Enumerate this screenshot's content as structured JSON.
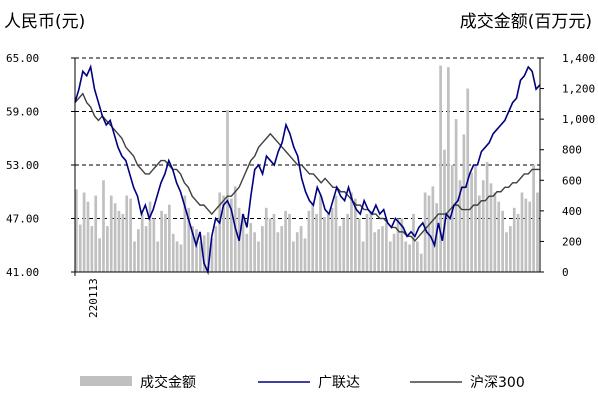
{
  "chart_data": {
    "type": "line",
    "ylabel_left": "人民币(元)",
    "ylabel_right": "成交金额(百万元)",
    "x_tick_label": "220113",
    "y_left": {
      "min": 41,
      "max": 65,
      "ticks": [
        "65.00",
        "59.00",
        "53.00",
        "47.00",
        "41.00"
      ]
    },
    "y_right": {
      "min": 0,
      "max": 1400,
      "ticks": [
        "1,400",
        "1,200",
        "1,000",
        "800",
        "600",
        "400",
        "200",
        "0"
      ]
    },
    "grid": "dashed horizontal at left-axis ticks",
    "legend_position": "bottom",
    "series": [
      {
        "name": "成交金额",
        "kind": "bar",
        "axis": "right",
        "color": "#c0c0c0",
        "values": [
          540,
          310,
          520,
          460,
          300,
          500,
          220,
          600,
          300,
          500,
          450,
          400,
          380,
          500,
          480,
          200,
          280,
          380,
          300,
          460,
          350,
          200,
          400,
          380,
          440,
          250,
          200,
          180,
          500,
          420,
          300,
          280,
          200,
          240,
          260,
          220,
          300,
          520,
          500,
          1060,
          480,
          560,
          420,
          380,
          250,
          320,
          260,
          200,
          300,
          420,
          350,
          380,
          260,
          300,
          400,
          380,
          200,
          260,
          300,
          220,
          400,
          450,
          380,
          500,
          360,
          380,
          420,
          500,
          300,
          350,
          380,
          520,
          480,
          350,
          200,
          380,
          400,
          260,
          280,
          300,
          320,
          200,
          250,
          350,
          350,
          200,
          180,
          380,
          200,
          120,
          520,
          500,
          560,
          450,
          1350,
          800,
          1340,
          700,
          1000,
          600,
          900,
          1200,
          650,
          700,
          500,
          600,
          720,
          580,
          520,
          460,
          400,
          260,
          300,
          420,
          380,
          520,
          480,
          460,
          700,
          520
        ]
      },
      {
        "name": "广联达",
        "kind": "line",
        "axis": "left",
        "color": "#000080",
        "values": [
          60.0,
          61.5,
          63.5,
          63.0,
          64.0,
          61.5,
          60.0,
          58.5,
          57.5,
          58.0,
          56.5,
          55.0,
          54.0,
          53.5,
          52.0,
          50.5,
          49.5,
          47.5,
          48.5,
          47.0,
          48.0,
          49.5,
          51.0,
          52.0,
          53.5,
          52.5,
          51.0,
          50.0,
          48.5,
          47.0,
          45.5,
          44.0,
          45.5,
          42.0,
          41.0,
          45.0,
          47.0,
          46.5,
          48.5,
          49.0,
          48.0,
          46.0,
          44.5,
          47.5,
          46.0,
          49.5,
          52.5,
          53.0,
          52.0,
          54.0,
          53.5,
          53.0,
          54.5,
          55.5,
          57.5,
          56.5,
          55.0,
          54.0,
          51.5,
          50.0,
          49.0,
          48.5,
          50.5,
          49.5,
          48.0,
          47.5,
          49.0,
          50.5,
          49.5,
          49.0,
          50.5,
          49.0,
          48.0,
          47.5,
          49.0,
          48.0,
          47.5,
          48.5,
          47.5,
          48.0,
          46.5,
          46.0,
          47.0,
          46.5,
          46.0,
          45.0,
          45.5,
          45.0,
          46.0,
          46.5,
          45.5,
          45.0,
          44.0,
          46.5,
          44.5,
          47.5,
          47.0,
          48.5,
          49.0,
          50.5,
          50.5,
          52.0,
          53.0,
          53.0,
          54.5,
          55.0,
          55.5,
          56.5,
          57.0,
          57.5,
          58.0,
          59.0,
          60.0,
          60.5,
          62.5,
          63.0,
          64.0,
          63.5,
          61.5,
          62.0
        ]
      },
      {
        "name": "沪深300",
        "kind": "line",
        "axis": "left",
        "color": "#404040",
        "values": [
          60.0,
          60.5,
          61.0,
          60.0,
          59.5,
          58.5,
          58.0,
          58.5,
          58.0,
          57.5,
          57.0,
          56.5,
          56.0,
          55.0,
          54.5,
          54.0,
          53.0,
          52.5,
          52.0,
          52.0,
          52.5,
          53.0,
          53.5,
          53.5,
          53.0,
          52.5,
          52.5,
          52.0,
          51.0,
          50.5,
          49.5,
          49.0,
          48.5,
          48.5,
          48.0,
          47.5,
          48.0,
          48.5,
          49.0,
          49.5,
          49.5,
          50.0,
          50.5,
          51.5,
          52.5,
          53.5,
          54.0,
          55.0,
          55.5,
          56.0,
          56.5,
          56.0,
          55.5,
          55.0,
          54.5,
          54.0,
          53.5,
          53.0,
          53.0,
          52.5,
          52.0,
          52.0,
          51.5,
          51.0,
          51.5,
          51.0,
          50.5,
          50.5,
          50.0,
          50.0,
          49.5,
          49.0,
          48.5,
          48.5,
          48.0,
          48.0,
          47.5,
          47.5,
          47.0,
          47.0,
          46.5,
          46.0,
          46.0,
          45.5,
          45.5,
          45.0,
          45.0,
          44.5,
          45.0,
          45.5,
          46.0,
          46.5,
          47.0,
          47.5,
          47.5,
          47.5,
          48.0,
          48.5,
          48.5,
          48.0,
          48.0,
          48.0,
          48.5,
          48.5,
          49.0,
          49.0,
          49.5,
          49.5,
          50.0,
          50.0,
          50.5,
          50.5,
          51.0,
          51.0,
          51.5,
          52.0,
          52.0,
          52.5,
          52.5,
          52.5
        ]
      }
    ]
  }
}
